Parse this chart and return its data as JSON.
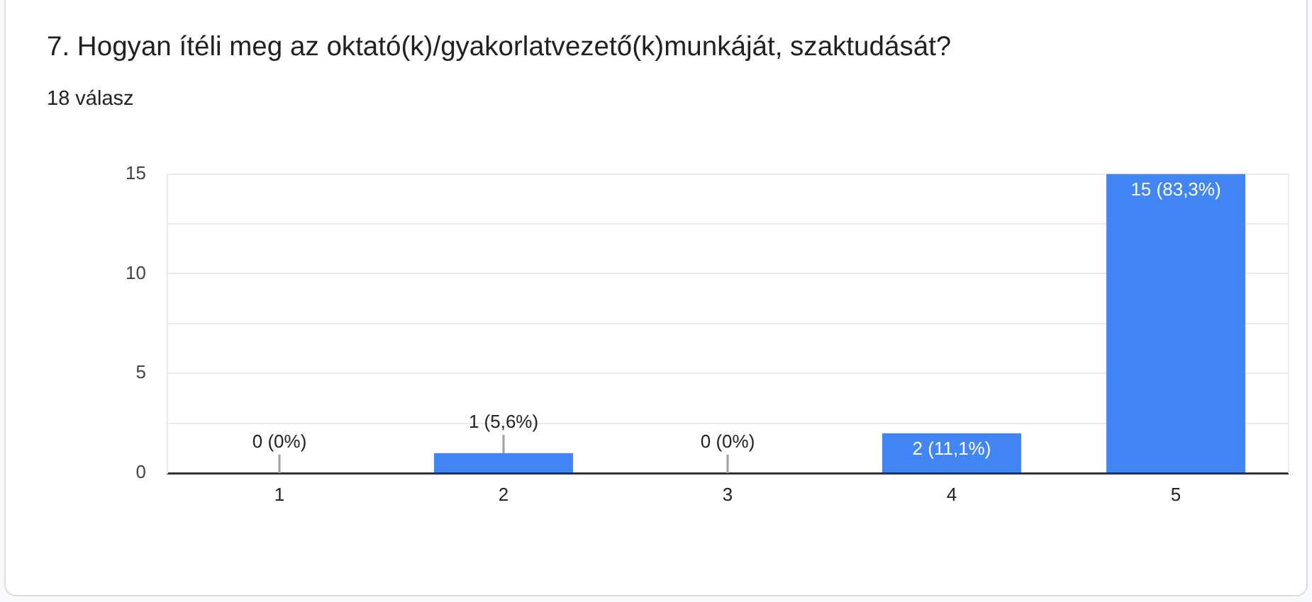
{
  "chart_data": {
    "type": "bar",
    "title": "7. Hogyan ítéli meg az oktató(k)/gyakorlatvezető(k)munkáját, szaktudását?",
    "subtitle": "18 válasz",
    "categories": [
      "1",
      "2",
      "3",
      "4",
      "5"
    ],
    "values": [
      0,
      1,
      0,
      2,
      15
    ],
    "color": "#4285f4",
    "value_labels": [
      "0 (0%)",
      "1 (5,6%)",
      "0 (0%)",
      "2 (11,1%)",
      "15 (83,3%)"
    ],
    "ylim": [
      0,
      15
    ],
    "yticks": [
      0,
      {
        "value": 2.5,
        "label": null
      },
      5,
      {
        "value": 7.5,
        "label": null
      },
      10,
      {
        "value": 12.5,
        "label": null
      },
      15
    ],
    "grid": "y"
  }
}
